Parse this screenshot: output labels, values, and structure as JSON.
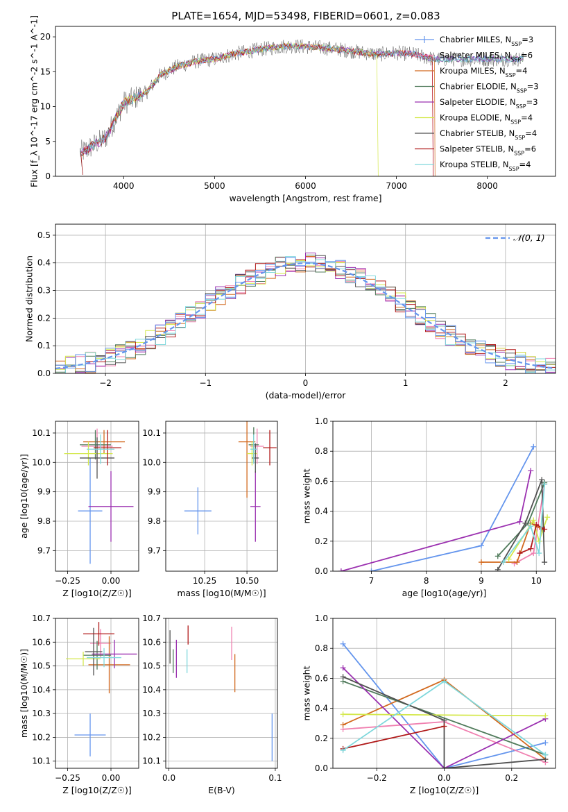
{
  "figure_title": "PLATE=1654, MJD=53498, FIBERID=0601, z=0.083",
  "series": [
    {
      "name": "Chabrier MILES, N_SSP=3",
      "color": "#6495ed"
    },
    {
      "name": "Salpeter MILES, N_SSP=6",
      "color": "#f080b0"
    },
    {
      "name": "Kroupa MILES, N_SSP=4",
      "color": "#d2691e"
    },
    {
      "name": "Chabrier ELODIE, N_SSP=3",
      "color": "#4f7a5a"
    },
    {
      "name": "Salpeter ELODIE, N_SSP=3",
      "color": "#9b30b0"
    },
    {
      "name": "Kroupa ELODIE, N_SSP=4",
      "color": "#d4e84a"
    },
    {
      "name": "Chabrier STELIB, N_SSP=4",
      "color": "#505050"
    },
    {
      "name": "Salpeter STELIB, N_SSP=6",
      "color": "#b01818"
    },
    {
      "name": "Kroupa STELIB, N_SSP=4",
      "color": "#7fd8dc"
    }
  ],
  "chart_data": [
    {
      "id": "spectrum",
      "type": "line",
      "xlabel": "wavelength [Angstrom, rest frame]",
      "ylabel": "Flux [f_λ 10^-17 erg cm^-2 s^-1 A^-1]",
      "xlim": [
        3250,
        8750
      ],
      "ylim": [
        0,
        21.5
      ],
      "xticks": [
        4000,
        5000,
        6000,
        7000,
        8000
      ],
      "yticks": [
        0,
        5,
        10,
        15,
        20
      ],
      "continuum": {
        "x": [
          3550,
          3800,
          4000,
          4250,
          4400,
          4600,
          4800,
          5000,
          5200,
          5500,
          5800,
          6000,
          6300,
          6600,
          6800,
          7000,
          7200,
          7400
        ],
        "y": [
          3.5,
          5.5,
          10.5,
          12,
          14.5,
          15.8,
          16.5,
          16.8,
          17.5,
          18.2,
          18.7,
          18.6,
          18.3,
          17.8,
          17.5,
          17.7,
          17.5,
          16.8
        ]
      },
      "grid": false,
      "legend": "top-right"
    },
    {
      "id": "residuals",
      "type": "step",
      "xlabel": "(data-model)/error",
      "ylabel": "Normed distribution",
      "xlim": [
        -2.5,
        2.5
      ],
      "ylim": [
        0,
        0.54
      ],
      "xticks": [
        -2,
        -1,
        0,
        1,
        2
      ],
      "yticks": [
        0,
        0.1,
        0.2,
        0.3,
        0.4,
        0.5
      ],
      "reference": {
        "name": "𝒩(0, 1)",
        "mean": 0,
        "sigma": 1,
        "color": "#6495ed"
      },
      "grid": true,
      "legend": "top-right"
    },
    {
      "id": "age_vs_Z",
      "type": "errorbar",
      "xlabel": "Z [log10(Z/Z☉)]",
      "ylabel": "age  [log10(age/yr)]",
      "xlim": [
        -0.32,
        0.16
      ],
      "ylim": [
        9.63,
        10.14
      ],
      "xticks": [
        -0.25,
        0.0
      ],
      "yticks": [
        9.7,
        9.8,
        9.9,
        10.0,
        10.1
      ],
      "points": [
        {
          "x": -0.12,
          "y": 9.835,
          "xerr": 0.07,
          "yerr": 0.18
        },
        {
          "x": -0.08,
          "y": 10.055,
          "xerr": 0.09,
          "yerr": 0.06
        },
        {
          "x": -0.04,
          "y": 10.07,
          "xerr": 0.12,
          "yerr": 0.04
        },
        {
          "x": -0.09,
          "y": 10.06,
          "xerr": 0.09,
          "yerr": 0.05
        },
        {
          "x": 0.0,
          "y": 9.85,
          "xerr": 0.13,
          "yerr": 0.12
        },
        {
          "x": -0.13,
          "y": 10.03,
          "xerr": 0.14,
          "yerr": 0.04
        },
        {
          "x": -0.08,
          "y": 10.015,
          "xerr": 0.1,
          "yerr": 0.07
        },
        {
          "x": -0.02,
          "y": 10.05,
          "xerr": 0.08,
          "yerr": 0.06
        },
        {
          "x": -0.06,
          "y": 10.045,
          "xerr": 0.08,
          "yerr": 0.05
        }
      ],
      "grid": true
    },
    {
      "id": "age_vs_mass",
      "type": "errorbar",
      "xlabel": "mass [log10(M/M☉)]",
      "xlim": [
        10.02,
        10.68
      ],
      "ylim": [
        9.63,
        10.14
      ],
      "xticks": [
        10.25,
        10.5
      ],
      "yticks": [
        9.7,
        9.8,
        9.9,
        10.0,
        10.1
      ],
      "points": [
        {
          "x": 10.21,
          "y": 9.835,
          "xerr": 0.08,
          "yerr": 0.08
        },
        {
          "x": 10.56,
          "y": 10.055,
          "xerr": 0.04,
          "yerr": 0.06
        },
        {
          "x": 10.5,
          "y": 10.07,
          "xerr": 0.05,
          "yerr": 0.19
        },
        {
          "x": 10.54,
          "y": 10.06,
          "xerr": 0.03,
          "yerr": 0.06
        },
        {
          "x": 10.55,
          "y": 9.85,
          "xerr": 0.03,
          "yerr": 0.12
        },
        {
          "x": 10.53,
          "y": 10.03,
          "xerr": 0.03,
          "yerr": 0.04
        },
        {
          "x": 10.55,
          "y": 10.015,
          "xerr": 0.02,
          "yerr": 0.05
        },
        {
          "x": 10.635,
          "y": 10.05,
          "xerr": 0.04,
          "yerr": 0.06
        },
        {
          "x": 10.54,
          "y": 10.045,
          "xerr": 0.02,
          "yerr": 0.05
        }
      ],
      "grid": true
    },
    {
      "id": "mass_weight_vs_age",
      "type": "line",
      "xlabel": "age  [log10(age/yr)]",
      "ylabel": "mass weight",
      "xlim": [
        6.3,
        10.35
      ],
      "ylim": [
        0,
        1
      ],
      "xticks": [
        7,
        8,
        9,
        10
      ],
      "yticks": [
        0,
        0.2,
        0.4,
        0.6,
        0.8,
        1.0
      ],
      "series": [
        {
          "x": [
            7.0,
            9.0,
            9.95
          ],
          "y": [
            0.0,
            0.17,
            0.83
          ]
        },
        {
          "x": [
            9.6,
            9.95,
            10.15
          ],
          "y": [
            0.05,
            0.12,
            0.58
          ]
        },
        {
          "x": [
            9.0,
            9.65,
            9.9,
            10.1
          ],
          "y": [
            0.06,
            0.06,
            0.32,
            0.28
          ]
        },
        {
          "x": [
            9.3,
            9.85,
            10.15
          ],
          "y": [
            0.1,
            0.32,
            0.59
          ]
        },
        {
          "x": [
            6.45,
            9.7,
            9.9
          ],
          "y": [
            0.0,
            0.33,
            0.67
          ]
        },
        {
          "x": [
            9.5,
            9.95,
            10.05,
            10.2
          ],
          "y": [
            0.08,
            0.34,
            0.2,
            0.36
          ]
        },
        {
          "x": [
            9.3,
            9.8,
            10.1,
            10.15
          ],
          "y": [
            0.01,
            0.32,
            0.61,
            0.06
          ]
        },
        {
          "x": [
            9.7,
            9.9,
            10.0,
            10.15
          ],
          "y": [
            0.12,
            0.15,
            0.31,
            0.28
          ]
        },
        {
          "x": [
            9.4,
            9.9,
            10.05,
            10.15
          ],
          "y": [
            0.06,
            0.3,
            0.12,
            0.58
          ]
        }
      ],
      "grid": true
    },
    {
      "id": "mass_vs_Z",
      "type": "errorbar",
      "xlabel": "Z [log10(Z/Z☉)]",
      "ylabel": "mass [log10(M/M☉)]",
      "xlim": [
        -0.32,
        0.16
      ],
      "ylim": [
        10.07,
        10.7
      ],
      "xticks": [
        -0.25,
        0.0
      ],
      "yticks": [
        10.1,
        10.2,
        10.3,
        10.4,
        10.5,
        10.6,
        10.7
      ],
      "points": [
        {
          "x": -0.12,
          "y": 10.21,
          "xerr": 0.09,
          "yerr": 0.09
        },
        {
          "x": -0.06,
          "y": 10.595,
          "xerr": 0.06,
          "yerr": 0.06
        },
        {
          "x": -0.01,
          "y": 10.505,
          "xerr": 0.12,
          "yerr": 0.12
        },
        {
          "x": -0.08,
          "y": 10.545,
          "xerr": 0.08,
          "yerr": 0.06
        },
        {
          "x": 0.02,
          "y": 10.55,
          "xerr": 0.13,
          "yerr": 0.06
        },
        {
          "x": -0.16,
          "y": 10.53,
          "xerr": 0.1,
          "yerr": 0.03
        },
        {
          "x": -0.1,
          "y": 10.56,
          "xerr": 0.05,
          "yerr": 0.1
        },
        {
          "x": -0.07,
          "y": 10.635,
          "xerr": 0.09,
          "yerr": 0.05
        },
        {
          "x": -0.04,
          "y": 10.535,
          "xerr": 0.1,
          "yerr": 0.04
        }
      ],
      "grid": true
    },
    {
      "id": "mass_vs_EBV",
      "type": "errorbar",
      "xlabel": "E(B-V)",
      "xlim": [
        -0.003,
        0.102
      ],
      "ylim": [
        10.07,
        10.7
      ],
      "xticks": [
        0.0,
        0.1
      ],
      "yticks": [
        10.1,
        10.2,
        10.3,
        10.4,
        10.5,
        10.6,
        10.7
      ],
      "points": [
        {
          "x": 0.097,
          "y": 10.2,
          "xerr": 0,
          "yerr": 0.1
        },
        {
          "x": 0.059,
          "y": 10.595,
          "xerr": 0,
          "yerr": 0.07
        },
        {
          "x": 0.062,
          "y": 10.47,
          "xerr": 0,
          "yerr": 0.08
        },
        {
          "x": 0.004,
          "y": 10.52,
          "xerr": 0,
          "yerr": 0.05
        },
        {
          "x": 0.007,
          "y": 10.53,
          "xerr": 0,
          "yerr": 0.08
        },
        {
          "x": 0.001,
          "y": 10.54,
          "xerr": 0,
          "yerr": 0.03
        },
        {
          "x": 0.001,
          "y": 10.58,
          "xerr": 0,
          "yerr": 0.07
        },
        {
          "x": 0.018,
          "y": 10.63,
          "xerr": 0,
          "yerr": 0.04
        },
        {
          "x": 0.017,
          "y": 10.52,
          "xerr": 0,
          "yerr": 0.05
        }
      ],
      "grid": true
    },
    {
      "id": "mass_weight_vs_Z",
      "type": "line",
      "xlabel": "Z [log10(Z/Z☉)]",
      "ylabel": "mass weight",
      "xlim": [
        -0.33,
        0.33
      ],
      "ylim": [
        0,
        1
      ],
      "xticks": [
        -0.2,
        0.0,
        0.2
      ],
      "yticks": [
        0,
        0.2,
        0.4,
        0.6,
        0.8,
        1.0
      ],
      "series": [
        {
          "x": [
            -0.3,
            0.0,
            0.3
          ],
          "y": [
            0.83,
            0.0,
            0.17
          ]
        },
        {
          "x": [
            -0.3,
            0.0,
            0.3
          ],
          "y": [
            0.26,
            0.31,
            0.04
          ]
        },
        {
          "x": [
            -0.3,
            0.0,
            0.3
          ],
          "y": [
            0.29,
            0.59,
            0.06
          ]
        },
        {
          "x": [
            -0.3,
            0.3
          ],
          "y": [
            0.58,
            0.09
          ]
        },
        {
          "x": [
            -0.3,
            0.0,
            0.3
          ],
          "y": [
            0.67,
            0.0,
            0.33
          ]
        },
        {
          "x": [
            -0.3,
            0.3
          ],
          "y": [
            0.36,
            0.35
          ]
        },
        {
          "x": [
            -0.3,
            0.0,
            0.0,
            0.3
          ],
          "y": [
            0.61,
            0.32,
            0.0,
            0.06
          ]
        },
        {
          "x": [
            -0.3,
            0.0
          ],
          "y": [
            0.13,
            0.28
          ]
        },
        {
          "x": [
            -0.3,
            0.0,
            0.3
          ],
          "y": [
            0.12,
            0.58,
            0.09
          ]
        }
      ],
      "grid": true
    }
  ]
}
